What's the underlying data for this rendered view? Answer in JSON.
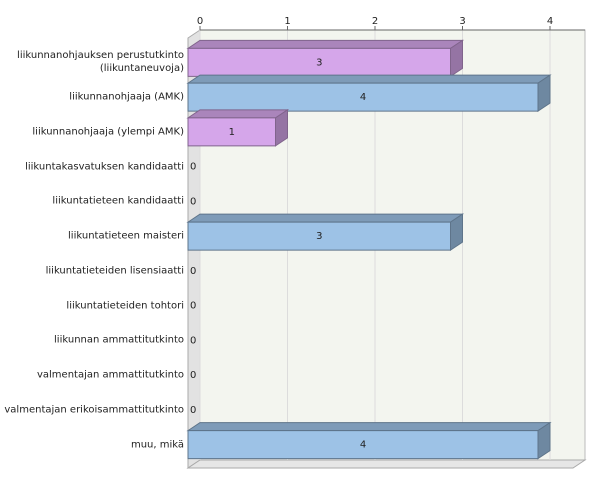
{
  "chart_data": {
    "type": "bar",
    "orientation": "horizontal",
    "categories": [
      "liikunnanohjauksen perustutkinto\n(liikuntaneuvoja)",
      "liikunnanohjaaja (AMK)",
      "liikunnanohjaaja (ylempi AMK)",
      "liikuntakasvatuksen kandidaatti",
      "liikuntatieteen kandidaatti",
      "liikuntatieteen maisteri",
      "liikuntatieteiden lisensiaatti",
      "liikuntatieteiden tohtori",
      "liikunnan ammattitutkinto",
      "valmentajan ammattitutkinto",
      "valmentajan erikoisammattitutkinto",
      "muu, mikä"
    ],
    "values": [
      3,
      4,
      1,
      0,
      0,
      3,
      0,
      0,
      0,
      0,
      0,
      4
    ],
    "colors": [
      "#d5a6ea",
      "#9dc2e6",
      "#d5a6ea",
      "#9dc2e6",
      "#9dc2e6",
      "#9dc2e6",
      "#9dc2e6",
      "#9dc2e6",
      "#9dc2e6",
      "#9dc2e6",
      "#9dc2e6",
      "#9dc2e6"
    ],
    "xlim": [
      0,
      4.4
    ],
    "xticks": [
      0,
      1,
      2,
      3,
      4
    ],
    "grid": true
  }
}
